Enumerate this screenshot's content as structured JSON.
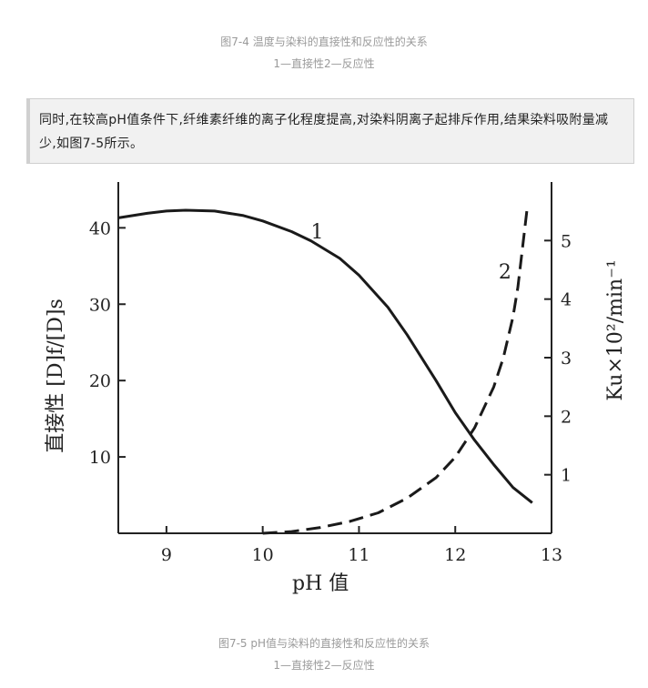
{
  "top_caption": {
    "title": "图7-4 温度与染料的直接性和反应性的关系",
    "legend": "1—直接性2—反应性"
  },
  "paragraph": "同时,在较高pH值条件下,纤维素纤维的离子化程度提高,对染料阴离子起排斥作用,结果染料吸附量减少,如图7-5所示。",
  "bottom_caption": {
    "title": "图7-5 pH值与染料的直接性和反应性的关系",
    "legend": "1—直接性2—反应性"
  },
  "chart_data": {
    "type": "line",
    "xlabel": "pH 值",
    "ylabel_left": "直接性 [D]f/[D]s",
    "ylabel_right": "Ku×10²/min⁻¹",
    "xlim": [
      8.5,
      13
    ],
    "ylim_left": [
      0,
      46
    ],
    "ylim_right": [
      0,
      6
    ],
    "x_ticks": [
      "9",
      "10",
      "11",
      "12",
      "13"
    ],
    "y_ticks_left": [
      "10",
      "20",
      "30",
      "40"
    ],
    "y_ticks_right": [
      "1",
      "2",
      "3",
      "4",
      "5"
    ],
    "series": [
      {
        "name": "1",
        "axis": "left",
        "style": "solid",
        "x": [
          8.5,
          8.8,
          9.0,
          9.2,
          9.5,
          9.8,
          10.0,
          10.3,
          10.5,
          10.8,
          11.0,
          11.3,
          11.5,
          11.8,
          12.0,
          12.2,
          12.4,
          12.6,
          12.8
        ],
        "y": [
          41.3,
          41.9,
          42.2,
          42.3,
          42.2,
          41.6,
          40.9,
          39.5,
          38.3,
          36.0,
          33.8,
          29.6,
          26.0,
          20.0,
          15.8,
          12.2,
          9.0,
          6.0,
          4.0
        ]
      },
      {
        "name": "2",
        "axis": "right",
        "style": "dashed",
        "x": [
          10.0,
          10.3,
          10.6,
          10.9,
          11.2,
          11.5,
          11.8,
          12.0,
          12.2,
          12.4,
          12.5,
          12.6,
          12.65,
          12.7,
          12.75
        ],
        "y": [
          0.0,
          0.03,
          0.1,
          0.2,
          0.35,
          0.6,
          0.95,
          1.3,
          1.8,
          2.5,
          3.0,
          3.7,
          4.2,
          4.9,
          5.6
        ]
      }
    ]
  }
}
